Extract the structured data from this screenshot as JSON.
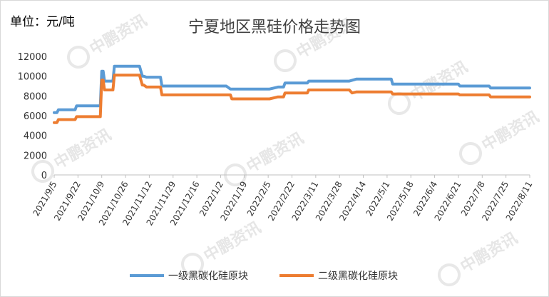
{
  "unit_label": "单位：元/吨",
  "watermark_text": "中鹏资讯",
  "chart_data": {
    "type": "line",
    "title": "宁夏地区黑硅价格走势图",
    "xlabel": "",
    "ylabel": "",
    "ylim": [
      0,
      12000
    ],
    "yticks": [
      0,
      2000,
      4000,
      6000,
      8000,
      10000,
      12000
    ],
    "grid": false,
    "legend_position": "bottom",
    "x_tick_labels": [
      "2021/9/5",
      "2021/9/22",
      "2021/10/9",
      "2021/10/26",
      "2021/11/12",
      "2021/11/29",
      "2021/12/16",
      "2022/1/2",
      "2022/1/19",
      "2022/2/5",
      "2022/2/22",
      "2022/3/11",
      "2022/3/28",
      "2022/4/14",
      "2022/5/1",
      "2022/5/18",
      "2022/6/4",
      "2022/6/21",
      "2022/7/8",
      "2022/7/25",
      "2022/8/11"
    ],
    "x_start": "2021/9/5",
    "x_end": "2022/8/11",
    "series": [
      {
        "name": "一级黑碳化硅原块",
        "color": "#5b9bd5",
        "points": [
          [
            "2021/9/5",
            6300
          ],
          [
            "2021/9/7",
            6300
          ],
          [
            "2021/9/8",
            6600
          ],
          [
            "2021/9/20",
            6600
          ],
          [
            "2021/9/21",
            7000
          ],
          [
            "2021/10/8",
            7000
          ],
          [
            "2021/10/9",
            10500
          ],
          [
            "2021/10/10",
            10500
          ],
          [
            "2021/10/11",
            9500
          ],
          [
            "2021/10/17",
            9500
          ],
          [
            "2021/10/18",
            11000
          ],
          [
            "2021/11/5",
            11000
          ],
          [
            "2021/11/7",
            10000
          ],
          [
            "2021/11/8",
            10000
          ],
          [
            "2021/11/10",
            9900
          ],
          [
            "2021/11/20",
            9900
          ],
          [
            "2021/11/21",
            9000
          ],
          [
            "2022/1/6",
            9000
          ],
          [
            "2022/1/9",
            8700
          ],
          [
            "2022/2/6",
            8700
          ],
          [
            "2022/2/12",
            8900
          ],
          [
            "2022/2/16",
            8900
          ],
          [
            "2022/2/17",
            9300
          ],
          [
            "2022/3/5",
            9300
          ],
          [
            "2022/3/6",
            9500
          ],
          [
            "2022/4/4",
            9500
          ],
          [
            "2022/4/9",
            9700
          ],
          [
            "2022/5/4",
            9700
          ],
          [
            "2022/5/5",
            9200
          ],
          [
            "2022/6/21",
            9200
          ],
          [
            "2022/6/22",
            9000
          ],
          [
            "2022/7/13",
            9000
          ],
          [
            "2022/7/14",
            8800
          ],
          [
            "2022/8/11",
            8800
          ]
        ]
      },
      {
        "name": "二级黑碳化硅原块",
        "color": "#ed7d31",
        "points": [
          [
            "2021/9/5",
            5300
          ],
          [
            "2021/9/7",
            5300
          ],
          [
            "2021/9/8",
            5600
          ],
          [
            "2021/9/20",
            5600
          ],
          [
            "2021/9/21",
            5900
          ],
          [
            "2021/10/8",
            5900
          ],
          [
            "2021/10/9",
            9600
          ],
          [
            "2021/10/10",
            9600
          ],
          [
            "2021/10/11",
            8600
          ],
          [
            "2021/10/17",
            8600
          ],
          [
            "2021/10/18",
            10100
          ],
          [
            "2021/11/5",
            10100
          ],
          [
            "2021/11/7",
            9100
          ],
          [
            "2021/11/8",
            9100
          ],
          [
            "2021/11/10",
            8900
          ],
          [
            "2021/11/20",
            8900
          ],
          [
            "2021/11/21",
            8100
          ],
          [
            "2022/1/9",
            8100
          ],
          [
            "2022/1/10",
            7700
          ],
          [
            "2022/2/6",
            7700
          ],
          [
            "2022/2/12",
            7900
          ],
          [
            "2022/2/16",
            7900
          ],
          [
            "2022/2/17",
            8300
          ],
          [
            "2022/3/5",
            8300
          ],
          [
            "2022/3/6",
            8600
          ],
          [
            "2022/4/4",
            8600
          ],
          [
            "2022/4/6",
            8300
          ],
          [
            "2022/4/9",
            8400
          ],
          [
            "2022/5/4",
            8400
          ],
          [
            "2022/5/5",
            8200
          ],
          [
            "2022/6/21",
            8200
          ],
          [
            "2022/6/22",
            8100
          ],
          [
            "2022/7/13",
            8100
          ],
          [
            "2022/7/14",
            7900
          ],
          [
            "2022/8/11",
            7900
          ]
        ]
      }
    ]
  }
}
